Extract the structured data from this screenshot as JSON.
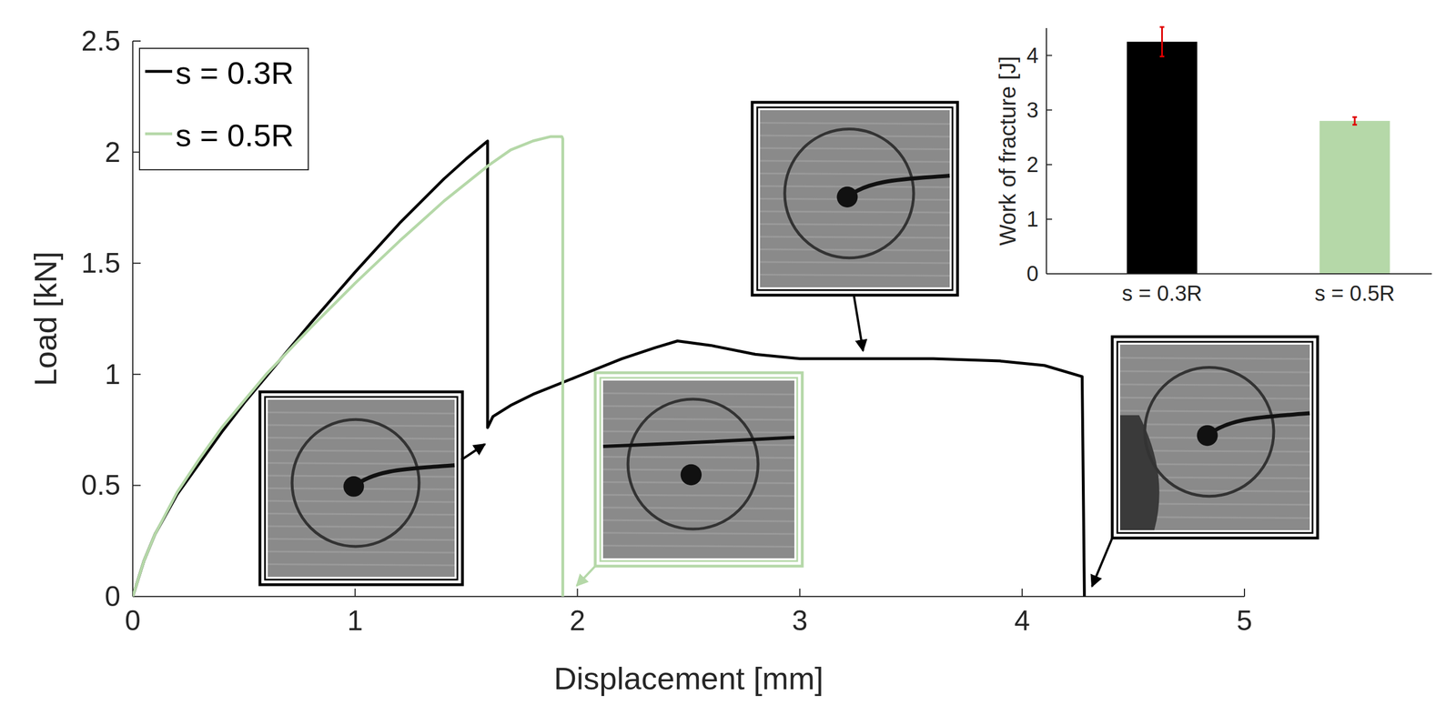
{
  "chart_data": [
    {
      "type": "line",
      "xlabel": "Displacement [mm]",
      "ylabel": "Load [kN]",
      "xlim": [
        0,
        5
      ],
      "ylim": [
        0,
        2.5
      ],
      "xticks": [
        0,
        1,
        2,
        3,
        4,
        5
      ],
      "yticks": [
        0,
        0.5,
        1,
        1.5,
        2,
        2.5
      ],
      "legend": "upper left",
      "series": [
        {
          "name": "s = 0.3R",
          "color": "#000000",
          "x": [
            0,
            0.05,
            0.1,
            0.2,
            0.3,
            0.4,
            0.5,
            0.6,
            0.8,
            1.0,
            1.2,
            1.4,
            1.5,
            1.596,
            1.596,
            1.62,
            1.7,
            1.8,
            2.0,
            2.2,
            2.35,
            2.45,
            2.6,
            2.8,
            3.0,
            3.3,
            3.6,
            3.9,
            4.1,
            4.27,
            4.28
          ],
          "values": [
            0,
            0.16,
            0.28,
            0.46,
            0.6,
            0.74,
            0.87,
            0.99,
            1.23,
            1.46,
            1.68,
            1.88,
            1.97,
            2.05,
            0.76,
            0.81,
            0.86,
            0.91,
            0.99,
            1.07,
            1.12,
            1.15,
            1.13,
            1.09,
            1.07,
            1.07,
            1.07,
            1.06,
            1.04,
            0.99,
            0
          ]
        },
        {
          "name": "s = 0.5R",
          "color": "#b5d8a8",
          "x": [
            0,
            0.05,
            0.1,
            0.2,
            0.3,
            0.4,
            0.5,
            0.6,
            0.8,
            1.0,
            1.2,
            1.4,
            1.6,
            1.7,
            1.8,
            1.88,
            1.93,
            1.934,
            1.934
          ],
          "values": [
            0,
            0.16,
            0.28,
            0.47,
            0.62,
            0.76,
            0.88,
            1.0,
            1.21,
            1.41,
            1.6,
            1.78,
            1.94,
            2.01,
            2.05,
            2.07,
            2.07,
            2.06,
            0
          ]
        }
      ]
    },
    {
      "type": "bar",
      "ylabel": "Work of fracture [J]",
      "categories": [
        "s = 0.3R",
        "s = 0.5R"
      ],
      "values": [
        4.25,
        2.8
      ],
      "errors": [
        0.27,
        0.07
      ],
      "colors": [
        "#000000",
        "#b5d8a8"
      ],
      "ylim": [
        0,
        4.5
      ],
      "yticks": [
        0,
        1,
        2,
        3,
        4
      ]
    }
  ]
}
